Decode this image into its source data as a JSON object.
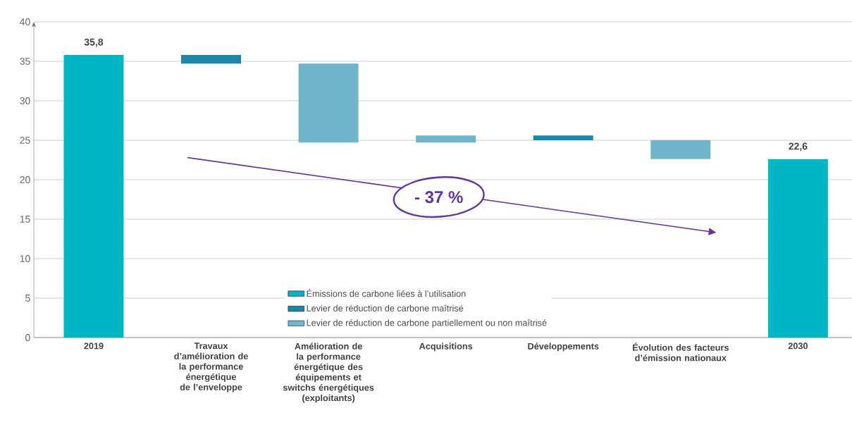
{
  "chart_data": {
    "type": "bar",
    "categories": [
      "2019",
      "Travaux d’amélioration de la performance énergétique de l’enveloppe",
      "Amélioration de la performance énergétique des équipements et switchs énergétiques (exploitants)",
      "Acquisitions",
      "Développements",
      "Évolution des facteurs d’émission nationaux",
      "2030"
    ],
    "series": [
      {
        "name": "Émissions de carbone liées à l’utilisation",
        "color": "#00b5c4",
        "values": [
          35.8,
          null,
          null,
          null,
          null,
          null,
          22.6
        ],
        "base": [
          0,
          null,
          null,
          null,
          null,
          null,
          0
        ],
        "value_labels": [
          "35,8",
          null,
          null,
          null,
          null,
          null,
          "22,6"
        ]
      },
      {
        "name": "Levier de réduction de carbone maîtrisé",
        "color": "#1a87a8",
        "values": [
          null,
          -1.1,
          null,
          null,
          -0.6,
          null,
          null
        ],
        "base": [
          null,
          35.8,
          null,
          null,
          25.6,
          null,
          null
        ]
      },
      {
        "name": "Levier de réduction de carbone partiellement ou non maîtrisé",
        "color": "#6fb6cc",
        "values": [
          null,
          null,
          -10.0,
          0.9,
          null,
          -2.4,
          null
        ],
        "base": [
          null,
          null,
          34.7,
          24.7,
          null,
          25.0,
          null
        ]
      }
    ],
    "ylim": [
      0,
      40
    ],
    "yticks": [
      0,
      5,
      10,
      15,
      20,
      25,
      30,
      35,
      40
    ],
    "grid": "y",
    "legend": "bottom",
    "annotations": [
      "- 37 %"
    ]
  }
}
